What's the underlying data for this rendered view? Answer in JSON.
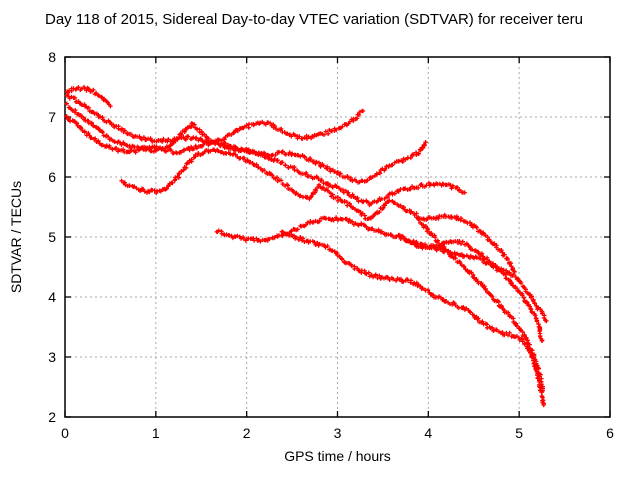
{
  "chart_data": {
    "type": "scatter",
    "title": "Day 118 of 2015, Sidereal Day-to-day VTEC variation (SDTVAR) for receiver teru",
    "xlabel": "GPS time / hours",
    "ylabel": "SDTVAR / TECUs",
    "xlim": [
      0,
      6
    ],
    "ylim": [
      2,
      8
    ],
    "xticks": [
      0,
      1,
      2,
      3,
      4,
      5,
      6
    ],
    "yticks": [
      2,
      3,
      4,
      5,
      6,
      7,
      8
    ],
    "grid": true,
    "legend": "none",
    "marker": "plus",
    "colors": {
      "series": "#ff0000",
      "grid": "#a8a8a8",
      "frame": "#000000",
      "text": "#000000"
    },
    "series": [
      {
        "name": "track-1",
        "points": [
          [
            0.02,
            7.42
          ],
          [
            0.08,
            7.46
          ],
          [
            0.15,
            7.48
          ],
          [
            0.22,
            7.47
          ],
          [
            0.3,
            7.44
          ],
          [
            0.38,
            7.36
          ],
          [
            0.45,
            7.27
          ],
          [
            0.5,
            7.18
          ]
        ]
      },
      {
        "name": "track-2",
        "points": [
          [
            0.02,
            7.36
          ],
          [
            0.12,
            7.28
          ],
          [
            0.22,
            7.18
          ],
          [
            0.33,
            7.05
          ],
          [
            0.44,
            6.94
          ],
          [
            0.55,
            6.85
          ],
          [
            0.66,
            6.76
          ],
          [
            0.78,
            6.68
          ],
          [
            0.9,
            6.63
          ],
          [
            1.02,
            6.6
          ],
          [
            1.14,
            6.61
          ],
          [
            1.26,
            6.64
          ],
          [
            1.38,
            6.66
          ],
          [
            1.5,
            6.62
          ],
          [
            1.62,
            6.57
          ],
          [
            1.74,
            6.62
          ],
          [
            1.86,
            6.74
          ],
          [
            2.0,
            6.84
          ],
          [
            2.12,
            6.89
          ],
          [
            2.24,
            6.89
          ],
          [
            2.36,
            6.79
          ],
          [
            2.48,
            6.71
          ],
          [
            2.6,
            6.65
          ],
          [
            2.72,
            6.67
          ],
          [
            2.84,
            6.72
          ],
          [
            2.96,
            6.78
          ],
          [
            3.08,
            6.86
          ],
          [
            3.2,
            6.98
          ],
          [
            3.28,
            7.1
          ]
        ]
      },
      {
        "name": "track-3",
        "points": [
          [
            0.02,
            7.2
          ],
          [
            0.12,
            7.09
          ],
          [
            0.24,
            6.94
          ],
          [
            0.36,
            6.79
          ],
          [
            0.48,
            6.66
          ],
          [
            0.6,
            6.57
          ],
          [
            0.72,
            6.5
          ],
          [
            0.84,
            6.46
          ],
          [
            0.96,
            6.44
          ],
          [
            1.08,
            6.46
          ],
          [
            1.18,
            6.55
          ],
          [
            1.3,
            6.74
          ],
          [
            1.4,
            6.89
          ],
          [
            1.5,
            6.74
          ],
          [
            1.6,
            6.6
          ],
          [
            1.72,
            6.52
          ],
          [
            1.84,
            6.48
          ],
          [
            1.98,
            6.44
          ],
          [
            2.12,
            6.4
          ],
          [
            2.26,
            6.38
          ],
          [
            2.4,
            6.41
          ],
          [
            2.54,
            6.38
          ],
          [
            2.68,
            6.3
          ],
          [
            2.82,
            6.2
          ],
          [
            2.96,
            6.09
          ],
          [
            3.1,
            5.99
          ],
          [
            3.22,
            5.93
          ],
          [
            3.33,
            5.95
          ],
          [
            3.44,
            6.05
          ],
          [
            3.56,
            6.18
          ],
          [
            3.68,
            6.26
          ],
          [
            3.8,
            6.33
          ],
          [
            3.9,
            6.42
          ],
          [
            3.97,
            6.58
          ]
        ]
      },
      {
        "name": "track-4",
        "points": [
          [
            0.02,
            7.0
          ],
          [
            0.12,
            6.88
          ],
          [
            0.24,
            6.72
          ],
          [
            0.36,
            6.59
          ],
          [
            0.48,
            6.5
          ],
          [
            0.6,
            6.44
          ],
          [
            0.72,
            6.42
          ],
          [
            0.84,
            6.46
          ],
          [
            0.96,
            6.5
          ],
          [
            1.08,
            6.46
          ],
          [
            1.2,
            6.41
          ],
          [
            1.32,
            6.44
          ],
          [
            1.44,
            6.5
          ],
          [
            1.56,
            6.55
          ],
          [
            1.68,
            6.58
          ],
          [
            1.8,
            6.53
          ],
          [
            1.92,
            6.47
          ],
          [
            2.04,
            6.42
          ],
          [
            2.16,
            6.37
          ],
          [
            2.28,
            6.3
          ],
          [
            2.4,
            6.22
          ],
          [
            2.52,
            6.14
          ],
          [
            2.64,
            6.06
          ],
          [
            2.76,
            5.98
          ],
          [
            2.88,
            5.9
          ],
          [
            3.0,
            5.81
          ],
          [
            3.12,
            5.72
          ],
          [
            3.24,
            5.62
          ],
          [
            3.36,
            5.55
          ],
          [
            3.48,
            5.63
          ],
          [
            3.58,
            5.7
          ],
          [
            3.7,
            5.77
          ],
          [
            3.84,
            5.83
          ],
          [
            3.98,
            5.87
          ],
          [
            4.12,
            5.88
          ],
          [
            4.26,
            5.84
          ],
          [
            4.33,
            5.79
          ],
          [
            4.4,
            5.74
          ]
        ]
      },
      {
        "name": "track-5",
        "points": [
          [
            0.62,
            5.92
          ],
          [
            0.72,
            5.85
          ],
          [
            0.82,
            5.79
          ],
          [
            0.92,
            5.76
          ],
          [
            1.02,
            5.75
          ],
          [
            1.1,
            5.79
          ],
          [
            1.2,
            5.92
          ],
          [
            1.3,
            6.12
          ],
          [
            1.4,
            6.3
          ],
          [
            1.52,
            6.42
          ],
          [
            1.64,
            6.45
          ],
          [
            1.76,
            6.41
          ],
          [
            1.88,
            6.36
          ],
          [
            2.0,
            6.28
          ],
          [
            2.12,
            6.18
          ],
          [
            2.24,
            6.06
          ],
          [
            2.36,
            5.94
          ],
          [
            2.48,
            5.81
          ],
          [
            2.58,
            5.7
          ],
          [
            2.66,
            5.63
          ],
          [
            2.74,
            5.72
          ],
          [
            2.8,
            5.85
          ],
          [
            2.88,
            5.78
          ],
          [
            2.98,
            5.65
          ],
          [
            3.1,
            5.56
          ],
          [
            3.22,
            5.43
          ],
          [
            3.34,
            5.3
          ],
          [
            3.46,
            5.44
          ],
          [
            3.58,
            5.6
          ],
          [
            3.7,
            5.5
          ],
          [
            3.82,
            5.4
          ],
          [
            3.94,
            5.31
          ],
          [
            4.06,
            5.3
          ],
          [
            4.18,
            5.35
          ],
          [
            4.3,
            5.33
          ],
          [
            4.42,
            5.26
          ],
          [
            4.54,
            5.14
          ],
          [
            4.66,
            4.98
          ],
          [
            4.78,
            4.8
          ],
          [
            4.88,
            4.62
          ],
          [
            4.95,
            4.42
          ]
        ]
      },
      {
        "name": "track-6",
        "points": [
          [
            1.67,
            5.1
          ],
          [
            1.78,
            5.04
          ],
          [
            1.9,
            4.99
          ],
          [
            2.02,
            4.96
          ],
          [
            2.14,
            4.95
          ],
          [
            2.26,
            4.97
          ],
          [
            2.38,
            5.02
          ],
          [
            2.5,
            5.1
          ],
          [
            2.62,
            5.18
          ],
          [
            2.74,
            5.26
          ],
          [
            2.86,
            5.3
          ],
          [
            2.98,
            5.3
          ],
          [
            3.1,
            5.28
          ],
          [
            3.22,
            5.22
          ],
          [
            3.34,
            5.15
          ],
          [
            3.46,
            5.1
          ],
          [
            3.58,
            5.04
          ],
          [
            3.7,
            4.98
          ],
          [
            3.82,
            4.93
          ],
          [
            3.94,
            4.88
          ],
          [
            4.06,
            4.82
          ],
          [
            4.18,
            4.77
          ],
          [
            4.3,
            4.72
          ],
          [
            4.42,
            4.68
          ],
          [
            4.54,
            4.64
          ],
          [
            4.66,
            4.56
          ],
          [
            4.78,
            4.47
          ],
          [
            4.9,
            4.39
          ],
          [
            5.0,
            4.28
          ],
          [
            5.08,
            4.12
          ],
          [
            5.15,
            3.96
          ],
          [
            5.22,
            3.8
          ],
          [
            5.27,
            3.68
          ],
          [
            5.3,
            3.6
          ]
        ]
      },
      {
        "name": "track-7",
        "points": [
          [
            2.38,
            5.1
          ],
          [
            2.5,
            5.02
          ],
          [
            2.62,
            4.95
          ],
          [
            2.74,
            4.9
          ],
          [
            2.86,
            4.86
          ],
          [
            2.95,
            4.76
          ],
          [
            3.04,
            4.64
          ],
          [
            3.13,
            4.54
          ],
          [
            3.24,
            4.44
          ],
          [
            3.36,
            4.37
          ],
          [
            3.49,
            4.32
          ],
          [
            3.62,
            4.29
          ],
          [
            3.75,
            4.28
          ],
          [
            3.86,
            4.23
          ],
          [
            3.96,
            4.12
          ],
          [
            4.06,
            4.02
          ],
          [
            4.17,
            3.95
          ],
          [
            4.29,
            3.88
          ],
          [
            4.41,
            3.8
          ],
          [
            4.51,
            3.68
          ],
          [
            4.61,
            3.55
          ],
          [
            4.71,
            3.45
          ],
          [
            4.81,
            3.4
          ],
          [
            4.91,
            3.37
          ],
          [
            5.01,
            3.31
          ],
          [
            5.08,
            3.19
          ],
          [
            5.13,
            3.03
          ],
          [
            5.17,
            2.86
          ],
          [
            5.21,
            2.66
          ],
          [
            5.24,
            2.45
          ],
          [
            5.27,
            2.2
          ]
        ]
      },
      {
        "name": "track-8",
        "points": [
          [
            3.88,
            5.3
          ],
          [
            3.97,
            5.16
          ],
          [
            4.06,
            5.0
          ],
          [
            4.16,
            4.84
          ],
          [
            4.26,
            4.68
          ],
          [
            4.36,
            4.54
          ],
          [
            4.46,
            4.4
          ],
          [
            4.56,
            4.25
          ],
          [
            4.66,
            4.08
          ],
          [
            4.76,
            3.92
          ],
          [
            4.86,
            3.74
          ],
          [
            4.95,
            3.58
          ],
          [
            5.03,
            3.42
          ],
          [
            5.1,
            3.25
          ],
          [
            5.15,
            3.05
          ],
          [
            5.19,
            2.88
          ],
          [
            5.23,
            2.68
          ],
          [
            5.26,
            2.44
          ]
        ]
      },
      {
        "name": "track-9",
        "points": [
          [
            3.68,
            5.02
          ],
          [
            3.8,
            4.92
          ],
          [
            3.92,
            4.82
          ],
          [
            4.04,
            4.84
          ],
          [
            4.16,
            4.9
          ],
          [
            4.28,
            4.93
          ],
          [
            4.4,
            4.89
          ],
          [
            4.52,
            4.78
          ],
          [
            4.64,
            4.63
          ],
          [
            4.76,
            4.47
          ],
          [
            4.88,
            4.29
          ],
          [
            4.98,
            4.12
          ],
          [
            5.08,
            3.92
          ],
          [
            5.16,
            3.72
          ],
          [
            5.22,
            3.5
          ],
          [
            5.25,
            3.27
          ]
        ]
      }
    ]
  }
}
